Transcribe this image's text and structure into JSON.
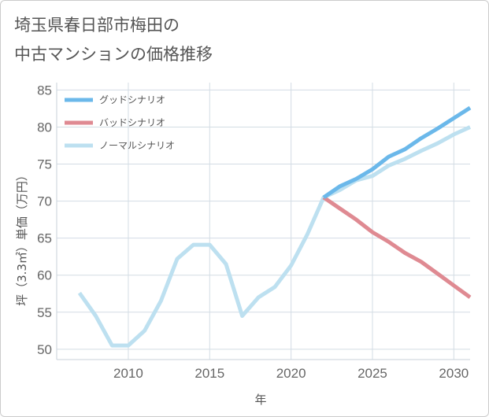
{
  "title": {
    "line1": "埼玉県春日部市梅田の",
    "line2": "中古マンションの価格推移"
  },
  "chart_data": {
    "type": "line",
    "xlabel": "年",
    "ylabel": "坪（3.3㎡）単価（万円）",
    "xlim": [
      2005.6,
      2031
    ],
    "ylim": [
      48.6,
      86
    ],
    "x_ticks": [
      2010,
      2015,
      2020,
      2025,
      2030
    ],
    "y_ticks": [
      50,
      55,
      60,
      65,
      70,
      75,
      80,
      85
    ],
    "grid": true,
    "legend_position": "top-left",
    "series": [
      {
        "name": "グッドシナリオ",
        "color": "#6bb8ea",
        "x": [
          2022,
          2023,
          2024,
          2025,
          2026,
          2027,
          2028,
          2029,
          2030,
          2031
        ],
        "y": [
          70.5,
          72.0,
          73.0,
          74.3,
          76.0,
          77.0,
          78.5,
          79.8,
          81.2,
          82.6
        ]
      },
      {
        "name": "バッドシナリオ",
        "color": "#df8a92",
        "x": [
          2022,
          2023,
          2024,
          2025,
          2026,
          2027,
          2028,
          2029,
          2030,
          2031
        ],
        "y": [
          70.5,
          69.0,
          67.5,
          65.8,
          64.5,
          63.0,
          61.8,
          60.2,
          58.6,
          57.0
        ]
      },
      {
        "name": "ノーマルシナリオ",
        "color": "#bde0f0",
        "x": [
          2007,
          2008,
          2009,
          2010,
          2011,
          2012,
          2013,
          2014,
          2015,
          2016,
          2017,
          2018,
          2019,
          2020,
          2021,
          2022,
          2023,
          2024,
          2025,
          2026,
          2027,
          2028,
          2029,
          2030,
          2031
        ],
        "y": [
          57.6,
          54.5,
          50.5,
          50.5,
          52.5,
          56.5,
          62.2,
          64.1,
          64.1,
          61.5,
          54.5,
          57.0,
          58.4,
          61.3,
          65.5,
          70.5,
          71.5,
          72.8,
          73.4,
          74.8,
          75.7,
          76.8,
          77.8,
          79.0,
          80.0
        ]
      }
    ]
  }
}
